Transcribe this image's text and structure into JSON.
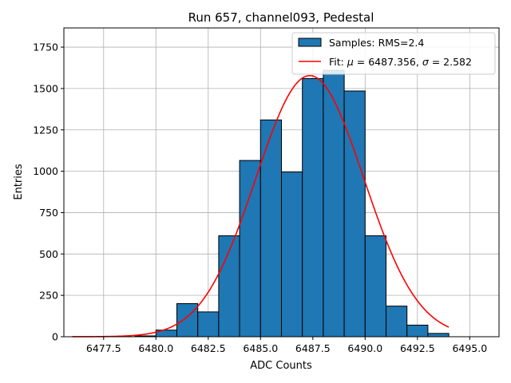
{
  "chart_data": {
    "type": "bar",
    "title": "Run 657, channel093, Pedestal",
    "xlabel": "ADC Counts",
    "ylabel": "Entries",
    "xlim": [
      6475.6,
      6496.4
    ],
    "ylim": [
      0,
      1866
    ],
    "grid": true,
    "legend_position": "top-right",
    "x_ticks": [
      6477.5,
      6480.0,
      6482.5,
      6485.0,
      6487.5,
      6490.0,
      6492.5,
      6495.0
    ],
    "x_tick_labels": [
      "6477.5",
      "6480.0",
      "6482.5",
      "6485.0",
      "6487.5",
      "6490.0",
      "6492.5",
      "6495.0"
    ],
    "y_ticks": [
      0,
      250,
      500,
      750,
      1000,
      1250,
      1500,
      1750
    ],
    "y_tick_labels": [
      "0",
      "250",
      "500",
      "750",
      "1000",
      "1250",
      "1500",
      "1750"
    ],
    "bin_edges": [
      6476,
      6477,
      6478,
      6479,
      6480,
      6481,
      6482,
      6483,
      6484,
      6485,
      6486,
      6487,
      6488,
      6489,
      6490,
      6491,
      6492,
      6493,
      6494
    ],
    "values": [
      0,
      0,
      0,
      5,
      40,
      200,
      150,
      610,
      1065,
      1310,
      995,
      1560,
      1610,
      1485,
      610,
      185,
      70,
      20
    ],
    "fit": {
      "mu": 6487.356,
      "sigma": 2.582,
      "amplitude": 1578,
      "x_range": [
        6476,
        6494
      ]
    },
    "colors": {
      "bars": "#1f77b4",
      "bar_edge": "#000000",
      "fit": "#ff0000",
      "grid": "#b0b0b0"
    },
    "series": [
      {
        "name": "Samples: RMS=2.4",
        "kind": "histogram"
      },
      {
        "name_prefix": "Fit: ",
        "name_mu": "μ",
        "name_mid": " = 6487.356, ",
        "name_sigma": "σ",
        "name_suffix": " = 2.582",
        "kind": "line"
      }
    ]
  }
}
